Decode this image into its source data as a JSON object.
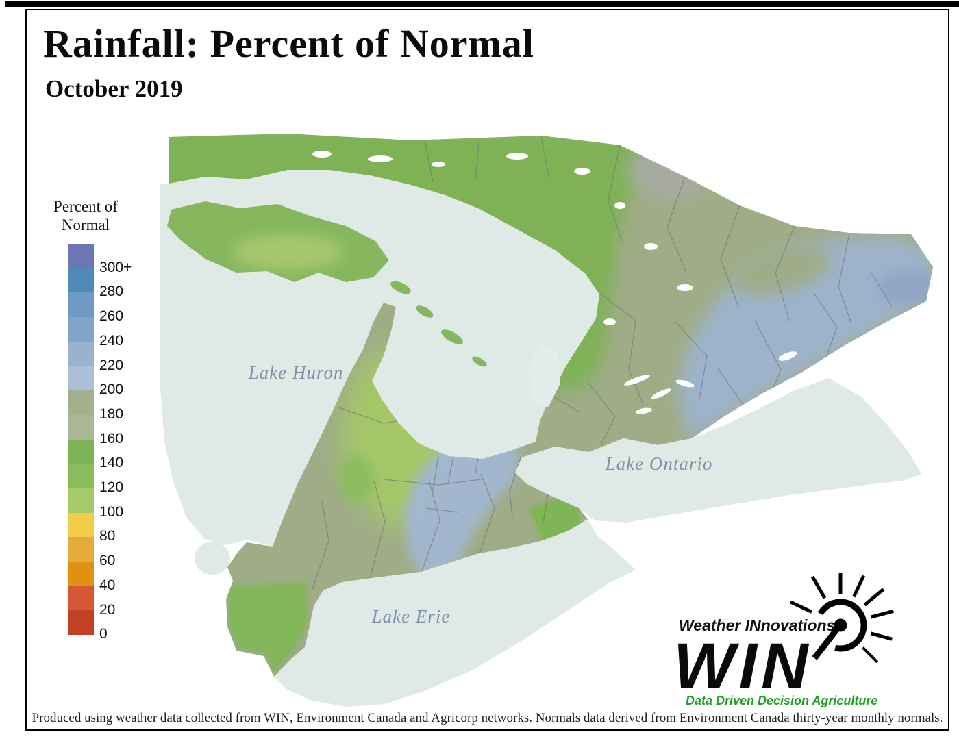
{
  "page": {
    "title": "Rainfall: Percent of Normal",
    "subtitle": "October 2019",
    "footer": "Produced using weather data collected from WIN, Environment Canada and Agricorp networks. Normals data derived from Environment Canada thirty-year monthly normals."
  },
  "legend": {
    "title_line1": "Percent of",
    "title_line2": "Normal",
    "bands": [
      {
        "label": "300+",
        "color": "#6c76b4"
      },
      {
        "label": "280",
        "color": "#4f8ab8"
      },
      {
        "label": "260",
        "color": "#6f9ac3"
      },
      {
        "label": "240",
        "color": "#81a5c9"
      },
      {
        "label": "220",
        "color": "#97b3cf"
      },
      {
        "label": "200",
        "color": "#abc0d6"
      },
      {
        "label": "180",
        "color": "#a4b08c"
      },
      {
        "label": "160",
        "color": "#abb794"
      },
      {
        "label": "140",
        "color": "#7db457"
      },
      {
        "label": "120",
        "color": "#8abc5e"
      },
      {
        "label": "100",
        "color": "#a5ca6a"
      },
      {
        "label": "80",
        "color": "#f2cd4a"
      },
      {
        "label": "60",
        "color": "#e7ab3d"
      },
      {
        "label": "40",
        "color": "#e09112"
      },
      {
        "label": "20",
        "color": "#d75634"
      },
      {
        "label": "0",
        "color": "#c24023"
      }
    ]
  },
  "map": {
    "water_color": "#dfe9e6",
    "label_color": "#7e91ab",
    "lakes": [
      {
        "name": "Lake Huron"
      },
      {
        "name": "Lake Ontario"
      },
      {
        "name": "Lake Erie"
      }
    ],
    "regions": {
      "north_green": "#7eb254",
      "central_olive": "#9fac87",
      "east_blue": "#9db3cb",
      "fareast_blue": "#8fa6c4",
      "gta_blue": "#a2b7ce",
      "west_lightgreen": "#a4c768",
      "west_green_hint": "#8abc5e",
      "essex_green": "#82b65a",
      "niagara_green": "#7fb557",
      "manitoulin_green": "#86b75f",
      "manitoulin_light": "#a6c76c",
      "top_gray": "#a7aba1",
      "simcoe_water": "#e4edeb",
      "boundary_line": "#70747a"
    }
  },
  "logo": {
    "brand": "Weather INnovations",
    "acronym": "WIN",
    "tagline": "Data Driven Decision Agriculture",
    "tagline_color": "#1fa11f"
  }
}
